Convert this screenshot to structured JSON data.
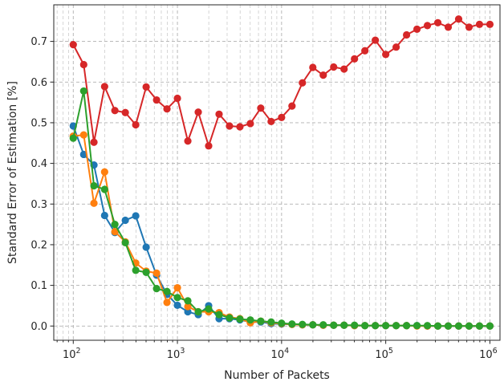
{
  "chart_data": {
    "type": "line",
    "xscale": "log",
    "xlabel": "Number of Packets",
    "ylabel": "Standard Error of Estimation [%]",
    "xlim": [
      65,
      1250000
    ],
    "ylim": [
      -0.035,
      0.79
    ],
    "x_ticks": [
      {
        "value": 100,
        "base": "10",
        "exp": "2"
      },
      {
        "value": 1000,
        "base": "10",
        "exp": "3"
      },
      {
        "value": 10000,
        "base": "10",
        "exp": "4"
      },
      {
        "value": 100000,
        "base": "10",
        "exp": "5"
      },
      {
        "value": 1000000,
        "base": "10",
        "exp": "6"
      }
    ],
    "y_ticks": [
      {
        "value": 0.0,
        "label": "0.0"
      },
      {
        "value": 0.1,
        "label": "0.1"
      },
      {
        "value": 0.2,
        "label": "0.2"
      },
      {
        "value": 0.3,
        "label": "0.3"
      },
      {
        "value": 0.4,
        "label": "0.4"
      },
      {
        "value": 0.5,
        "label": "0.5"
      },
      {
        "value": 0.6,
        "label": "0.6"
      },
      {
        "value": 0.7,
        "label": "0.7"
      }
    ],
    "grid": true,
    "x": [
      100,
      126,
      158,
      200,
      251,
      316,
      398,
      501,
      631,
      794,
      1000,
      1259,
      1585,
      1995,
      2512,
      3162,
      3981,
      5012,
      6310,
      7943,
      10000,
      12589,
      15849,
      19953,
      25119,
      31623,
      39811,
      50119,
      63096,
      79433,
      100000,
      125893,
      158489,
      199526,
      251189,
      316228,
      398107,
      501187,
      630957,
      794328,
      1000000
    ],
    "series": [
      {
        "color": "#d62728",
        "values": [
          0.692,
          0.643,
          0.452,
          0.589,
          0.53,
          0.525,
          0.495,
          0.588,
          0.556,
          0.534,
          0.56,
          0.455,
          0.526,
          0.443,
          0.521,
          0.492,
          0.49,
          0.498,
          0.536,
          0.503,
          0.513,
          0.541,
          0.598,
          0.636,
          0.617,
          0.637,
          0.632,
          0.657,
          0.677,
          0.703,
          0.668,
          0.686,
          0.716,
          0.73,
          0.739,
          0.746,
          0.735,
          0.755,
          0.735,
          0.742,
          0.742
        ]
      },
      {
        "color": "#1f77b4",
        "values": [
          0.492,
          0.422,
          0.396,
          0.272,
          0.23,
          0.26,
          0.271,
          0.194,
          0.125,
          0.078,
          0.051,
          0.035,
          0.028,
          0.05,
          0.018,
          0.018,
          0.015,
          0.01,
          0.01,
          0.006,
          0.005,
          0.004,
          0.003,
          0.003,
          0.002,
          0.002,
          0.002,
          0.001,
          0.001,
          0.001,
          0.001,
          0.001,
          0.001,
          0.001,
          0.0,
          0.0,
          0.0,
          0.0,
          0.0,
          0.0,
          0.0
        ]
      },
      {
        "color": "#ff7f0e",
        "values": [
          0.467,
          0.47,
          0.302,
          0.379,
          0.232,
          0.207,
          0.155,
          0.135,
          0.13,
          0.058,
          0.094,
          0.048,
          0.035,
          0.035,
          0.033,
          0.022,
          0.018,
          0.008,
          0.012,
          0.008,
          0.006,
          0.004,
          0.003,
          0.003,
          0.002,
          0.002,
          0.002,
          0.001,
          0.001,
          0.001,
          0.001,
          0.001,
          0.001,
          0.0,
          0.0,
          0.0,
          0.0,
          0.0,
          0.0,
          0.0,
          0.0
        ]
      },
      {
        "color": "#2ca02c",
        "values": [
          0.462,
          0.578,
          0.345,
          0.336,
          0.25,
          0.205,
          0.137,
          0.132,
          0.092,
          0.085,
          0.07,
          0.062,
          0.035,
          0.042,
          0.028,
          0.02,
          0.017,
          0.015,
          0.012,
          0.01,
          0.007,
          0.005,
          0.004,
          0.003,
          0.003,
          0.002,
          0.002,
          0.002,
          0.001,
          0.001,
          0.001,
          0.001,
          0.001,
          0.001,
          0.001,
          0.0,
          0.0,
          0.0,
          0.0,
          0.0,
          0.0
        ]
      }
    ]
  }
}
